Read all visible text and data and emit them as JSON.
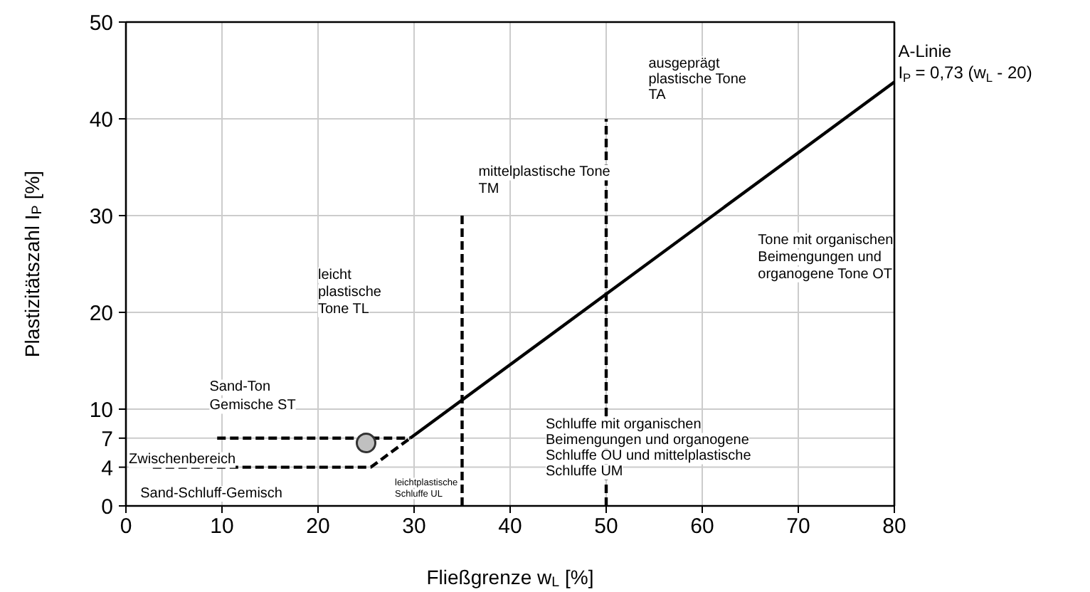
{
  "chart_data": {
    "type": "line",
    "xlabel": "Fließgrenze w$_{L}$ [%]",
    "ylabel": "Plastizitätszahl I$_{P}$ [%]",
    "xlim": [
      0,
      80
    ],
    "ylim": [
      0,
      50
    ],
    "xticks": [
      0,
      10,
      20,
      30,
      40,
      50,
      60,
      70,
      80
    ],
    "yticks": [
      0,
      4,
      7,
      10,
      20,
      30,
      40,
      50
    ],
    "grid": true,
    "series": [
      {
        "color": "#000000",
        "line_style": "solid",
        "x": [
          29.6,
          80
        ],
        "values": [
          7,
          43.8
        ]
      },
      {
        "color": "#000000",
        "line_style": "dashed",
        "x": [
          9.5,
          29.6
        ],
        "values": [
          7,
          7
        ]
      },
      {
        "color": "#000000",
        "line_style": "dashed",
        "x": [
          2.8,
          25.5,
          29.6
        ],
        "values": [
          4,
          4,
          7
        ]
      },
      {
        "color": "#000000",
        "line_style": "dashed",
        "x": [
          35,
          35
        ],
        "values": [
          0,
          30
        ]
      },
      {
        "color": "#000000",
        "line_style": "dashed",
        "x": [
          50,
          50,
          50,
          50
        ],
        "values": [
          0,
          31,
          36,
          40
        ]
      },
      {
        "type": "scatter",
        "color": "#c0c0c0",
        "marker": "circle",
        "x": [
          25
        ],
        "values": [
          6.5
        ]
      }
    ],
    "annotations": [
      "leicht\nplastische\nTone TL",
      "mittelplastische Tone\nTM",
      "ausgeprägt\nplastische Tone\nTA",
      "Tone mit organischen\nBeimengungen und\norganogene Tone OT",
      "Sand-Ton\nGemische ST",
      "Zwischenbereich",
      "Sand-Schluff-Gemisch",
      "leichtplastische\nSchluffe UL",
      "Schluffe mit organischen\nBeimengungen und organogene\nSchluffe OU und mittelplastische\nSchluffe UM",
      "A-Linie",
      "I$_{P}$ = 0,73 (w$_{L}$ - 20)"
    ]
  }
}
